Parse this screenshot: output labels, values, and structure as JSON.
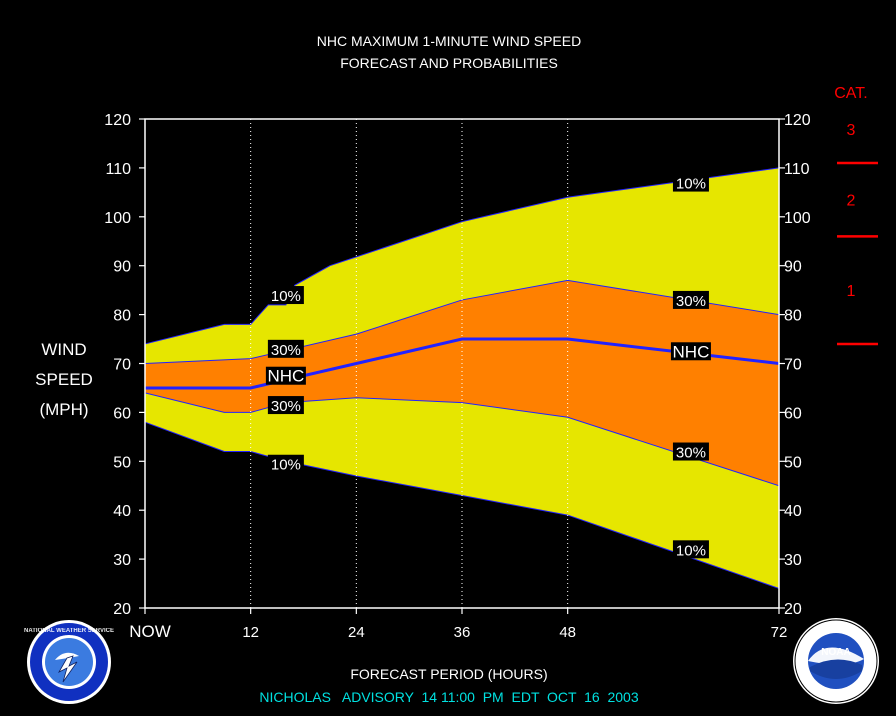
{
  "chart_data": {
    "type": "area",
    "title_lines": [
      "NHC MAXIMUM 1-MINUTE WIND SPEED",
      "FORECAST AND PROBABILITIES"
    ],
    "xlabel": "FORECAST PERIOD (HOURS)",
    "ylabel_lines": [
      "WIND",
      "SPEED",
      "(MPH)"
    ],
    "x_ticks": [
      {
        "x": 0,
        "label": "NOW"
      },
      {
        "x": 12,
        "label": "12"
      },
      {
        "x": 24,
        "label": "24"
      },
      {
        "x": 36,
        "label": "36"
      },
      {
        "x": 48,
        "label": "48"
      },
      {
        "x": 72,
        "label": "72"
      }
    ],
    "xlim": [
      0,
      72
    ],
    "ylim": [
      20,
      120
    ],
    "y_ticks": [
      20,
      30,
      40,
      50,
      60,
      70,
      80,
      90,
      100,
      110,
      120
    ],
    "bands": [
      {
        "name": "10%-90%",
        "color": "#e6e600",
        "upper": [
          [
            0,
            74
          ],
          [
            9,
            78
          ],
          [
            12,
            78
          ],
          [
            14,
            82
          ],
          [
            16,
            82
          ],
          [
            17,
            86
          ],
          [
            21,
            90
          ],
          [
            36,
            99
          ],
          [
            48,
            104
          ],
          [
            72,
            110
          ]
        ],
        "lower": [
          [
            0,
            58
          ],
          [
            9,
            52
          ],
          [
            12,
            52
          ],
          [
            16,
            50
          ],
          [
            24,
            47
          ],
          [
            36,
            43
          ],
          [
            48,
            39
          ],
          [
            72,
            24
          ]
        ]
      },
      {
        "name": "30%-70%",
        "color": "#ff8000",
        "upper": [
          [
            0,
            70
          ],
          [
            12,
            71
          ],
          [
            24,
            76
          ],
          [
            36,
            83
          ],
          [
            48,
            87
          ],
          [
            72,
            80
          ]
        ],
        "lower": [
          [
            0,
            64
          ],
          [
            9,
            60
          ],
          [
            12,
            60
          ],
          [
            16,
            62
          ],
          [
            24,
            63
          ],
          [
            36,
            62
          ],
          [
            48,
            59
          ],
          [
            72,
            45
          ]
        ]
      }
    ],
    "nhc_forecast": {
      "name": "NHC",
      "color": "#2222ff",
      "points": [
        [
          0,
          65
        ],
        [
          12,
          65
        ],
        [
          24,
          70
        ],
        [
          36,
          75
        ],
        [
          48,
          75
        ],
        [
          72,
          70
        ]
      ]
    },
    "annotations": [
      {
        "text": "10%",
        "x": 16,
        "y": 84
      },
      {
        "text": "30%",
        "x": 16,
        "y": 73
      },
      {
        "text": "NHC",
        "x": 16,
        "y": 67.5
      },
      {
        "text": "30%",
        "x": 16,
        "y": 61.5
      },
      {
        "text": "10%",
        "x": 16,
        "y": 49.5
      },
      {
        "text": "10%",
        "x": 62,
        "y": 107
      },
      {
        "text": "30%",
        "x": 62,
        "y": 83
      },
      {
        "text": "NHC",
        "x": 62,
        "y": 72.5
      },
      {
        "text": "30%",
        "x": 62,
        "y": 52
      },
      {
        "text": "10%",
        "x": 62,
        "y": 32
      }
    ],
    "category_scale": {
      "label": "CAT.",
      "color": "#ff0000",
      "markers": [
        74,
        96,
        111
      ],
      "labels": [
        {
          "text": "1",
          "y": 85
        },
        {
          "text": "2",
          "y": 103.5
        },
        {
          "text": "3",
          "y": 118
        }
      ]
    },
    "grid": {
      "vertical_dotted_at": [
        12,
        24,
        36,
        48
      ]
    }
  },
  "footer": {
    "advisory": "NICHOLAS   ADVISORY  14 11:00  PM  EDT  OCT  16  2003",
    "advisory_color": "#00e0e0"
  },
  "logos": {
    "left": {
      "name": "nws-logo",
      "text": "NATIONAL WEATHER SERVICE"
    },
    "right": {
      "name": "noaa-logo",
      "text": "NOAA"
    }
  }
}
